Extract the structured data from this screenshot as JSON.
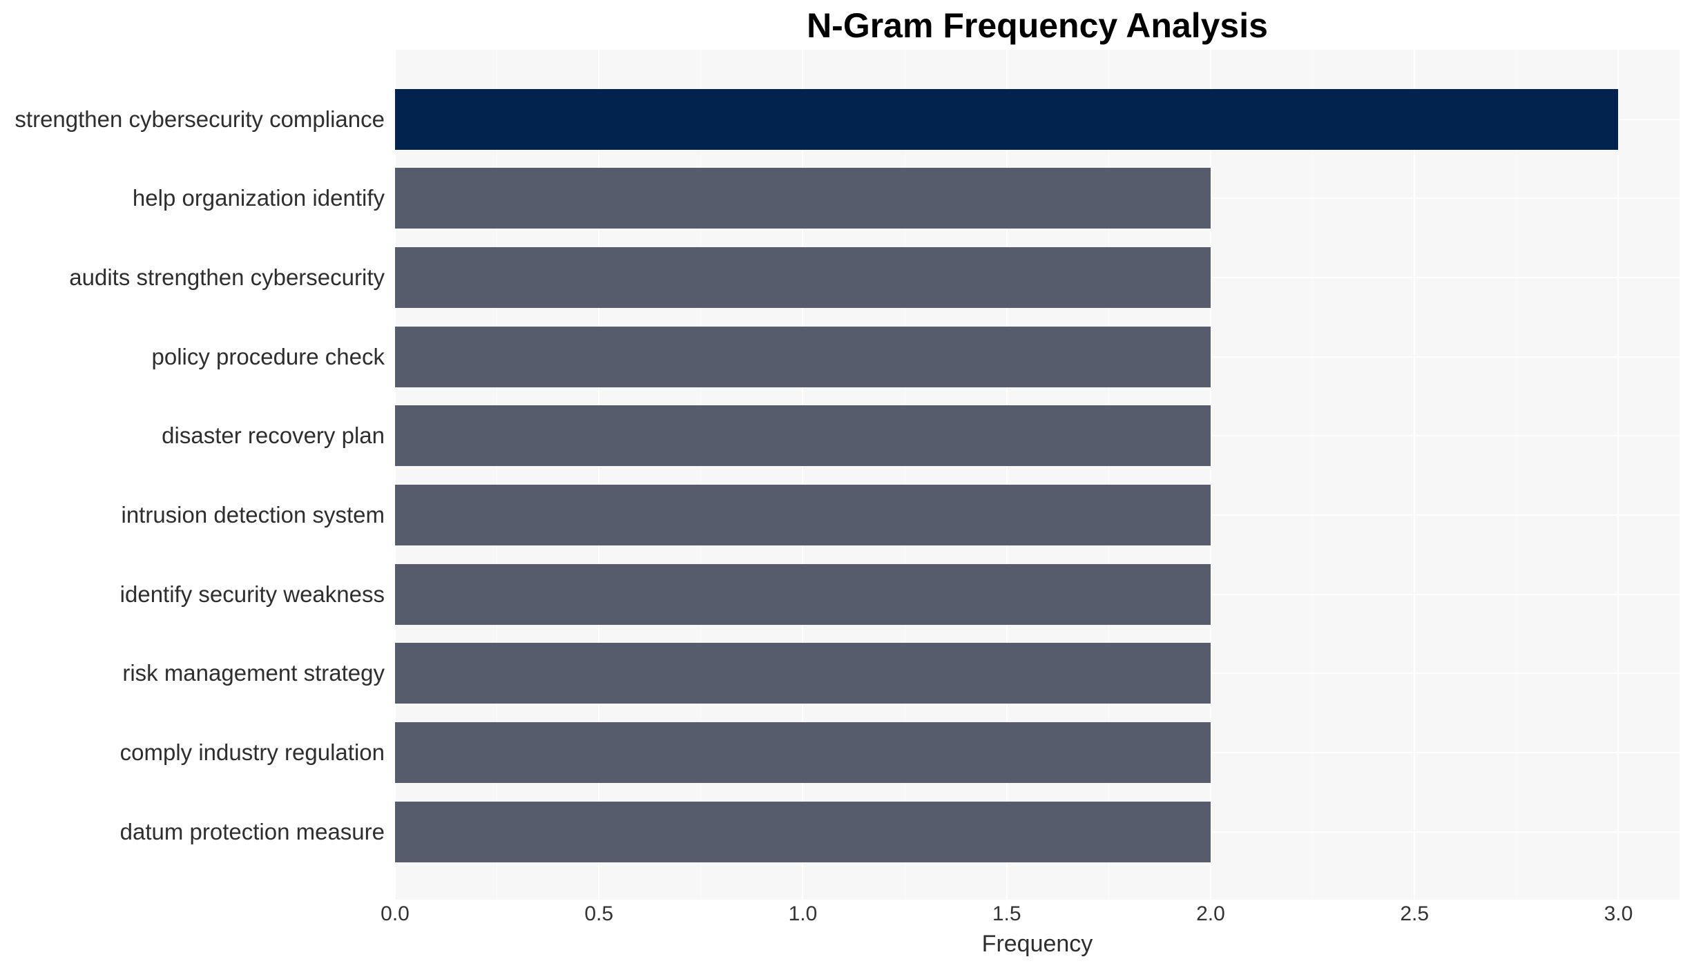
{
  "chart_data": {
    "type": "bar",
    "orientation": "horizontal",
    "title": "N-Gram Frequency Analysis",
    "xlabel": "Frequency",
    "ylabel": "",
    "categories": [
      "strengthen cybersecurity compliance",
      "help organization identify",
      "audits strengthen cybersecurity",
      "policy procedure check",
      "disaster recovery plan",
      "intrusion detection system",
      "identify security weakness",
      "risk management strategy",
      "comply industry regulation",
      "datum protection measure"
    ],
    "values": [
      3,
      2,
      2,
      2,
      2,
      2,
      2,
      2,
      2,
      2
    ],
    "bar_colors": [
      "#02234d",
      "#565c6b",
      "#565c6b",
      "#565c6b",
      "#565c6b",
      "#565c6b",
      "#565c6b",
      "#565c6b",
      "#565c6b",
      "#565c6b"
    ],
    "highlight_index": 0,
    "xlim": [
      0,
      3.15
    ],
    "ticks": [
      0,
      0.5,
      1,
      1.5,
      2,
      2.5,
      3
    ],
    "tick_labels": [
      "0.0",
      "0.5",
      "1.0",
      "1.5",
      "2.0",
      "2.5",
      "3.0"
    ],
    "grid": "on",
    "legend": "none",
    "colors": {
      "panel_bg": "#f7f7f8",
      "grid": "#ffffff",
      "highlight_bar": "#02234d",
      "default_bar": "#565c6b",
      "text": "#2e2e2e",
      "title_text": "#000000"
    }
  }
}
